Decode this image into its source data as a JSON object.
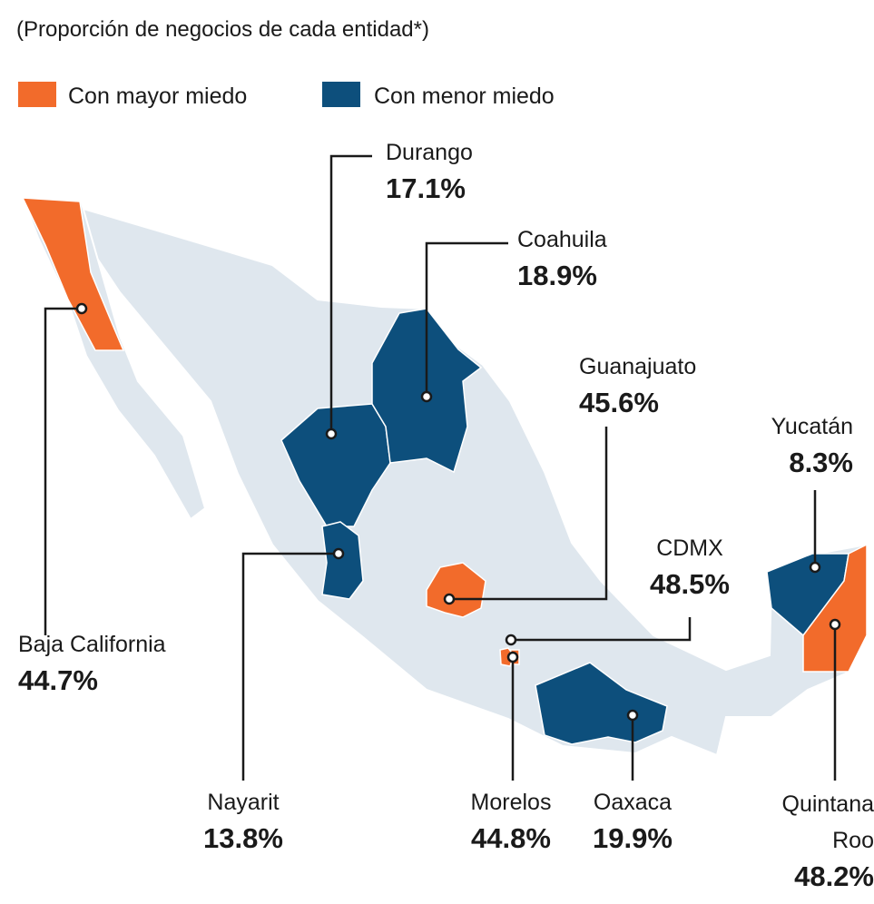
{
  "subtitle": "(Proporción de negocios de cada entidad*)",
  "legend": [
    {
      "label": "Con mayor miedo",
      "color": "#f26b2b"
    },
    {
      "label": "Con menor miedo",
      "color": "#0d4f7c"
    }
  ],
  "regions": [
    {
      "name": "Baja California",
      "value": "44.7%",
      "group": 0
    },
    {
      "name": "Durango",
      "value": "17.1%",
      "group": 1
    },
    {
      "name": "Coahuila",
      "value": "18.9%",
      "group": 1
    },
    {
      "name": "Nayarit",
      "value": "13.8%",
      "group": 1
    },
    {
      "name": "Guanajuato",
      "value": "45.6%",
      "group": 0
    },
    {
      "name": "CDMX",
      "value": "48.5%",
      "group": 0
    },
    {
      "name": "Morelos",
      "value": "44.8%",
      "group": 0
    },
    {
      "name": "Oaxaca",
      "value": "19.9%",
      "group": 1
    },
    {
      "name": "Yucatán",
      "value": "8.3%",
      "group": 1
    },
    {
      "name": "Quintana Roo",
      "value": "48.2%",
      "group": 0
    }
  ]
}
